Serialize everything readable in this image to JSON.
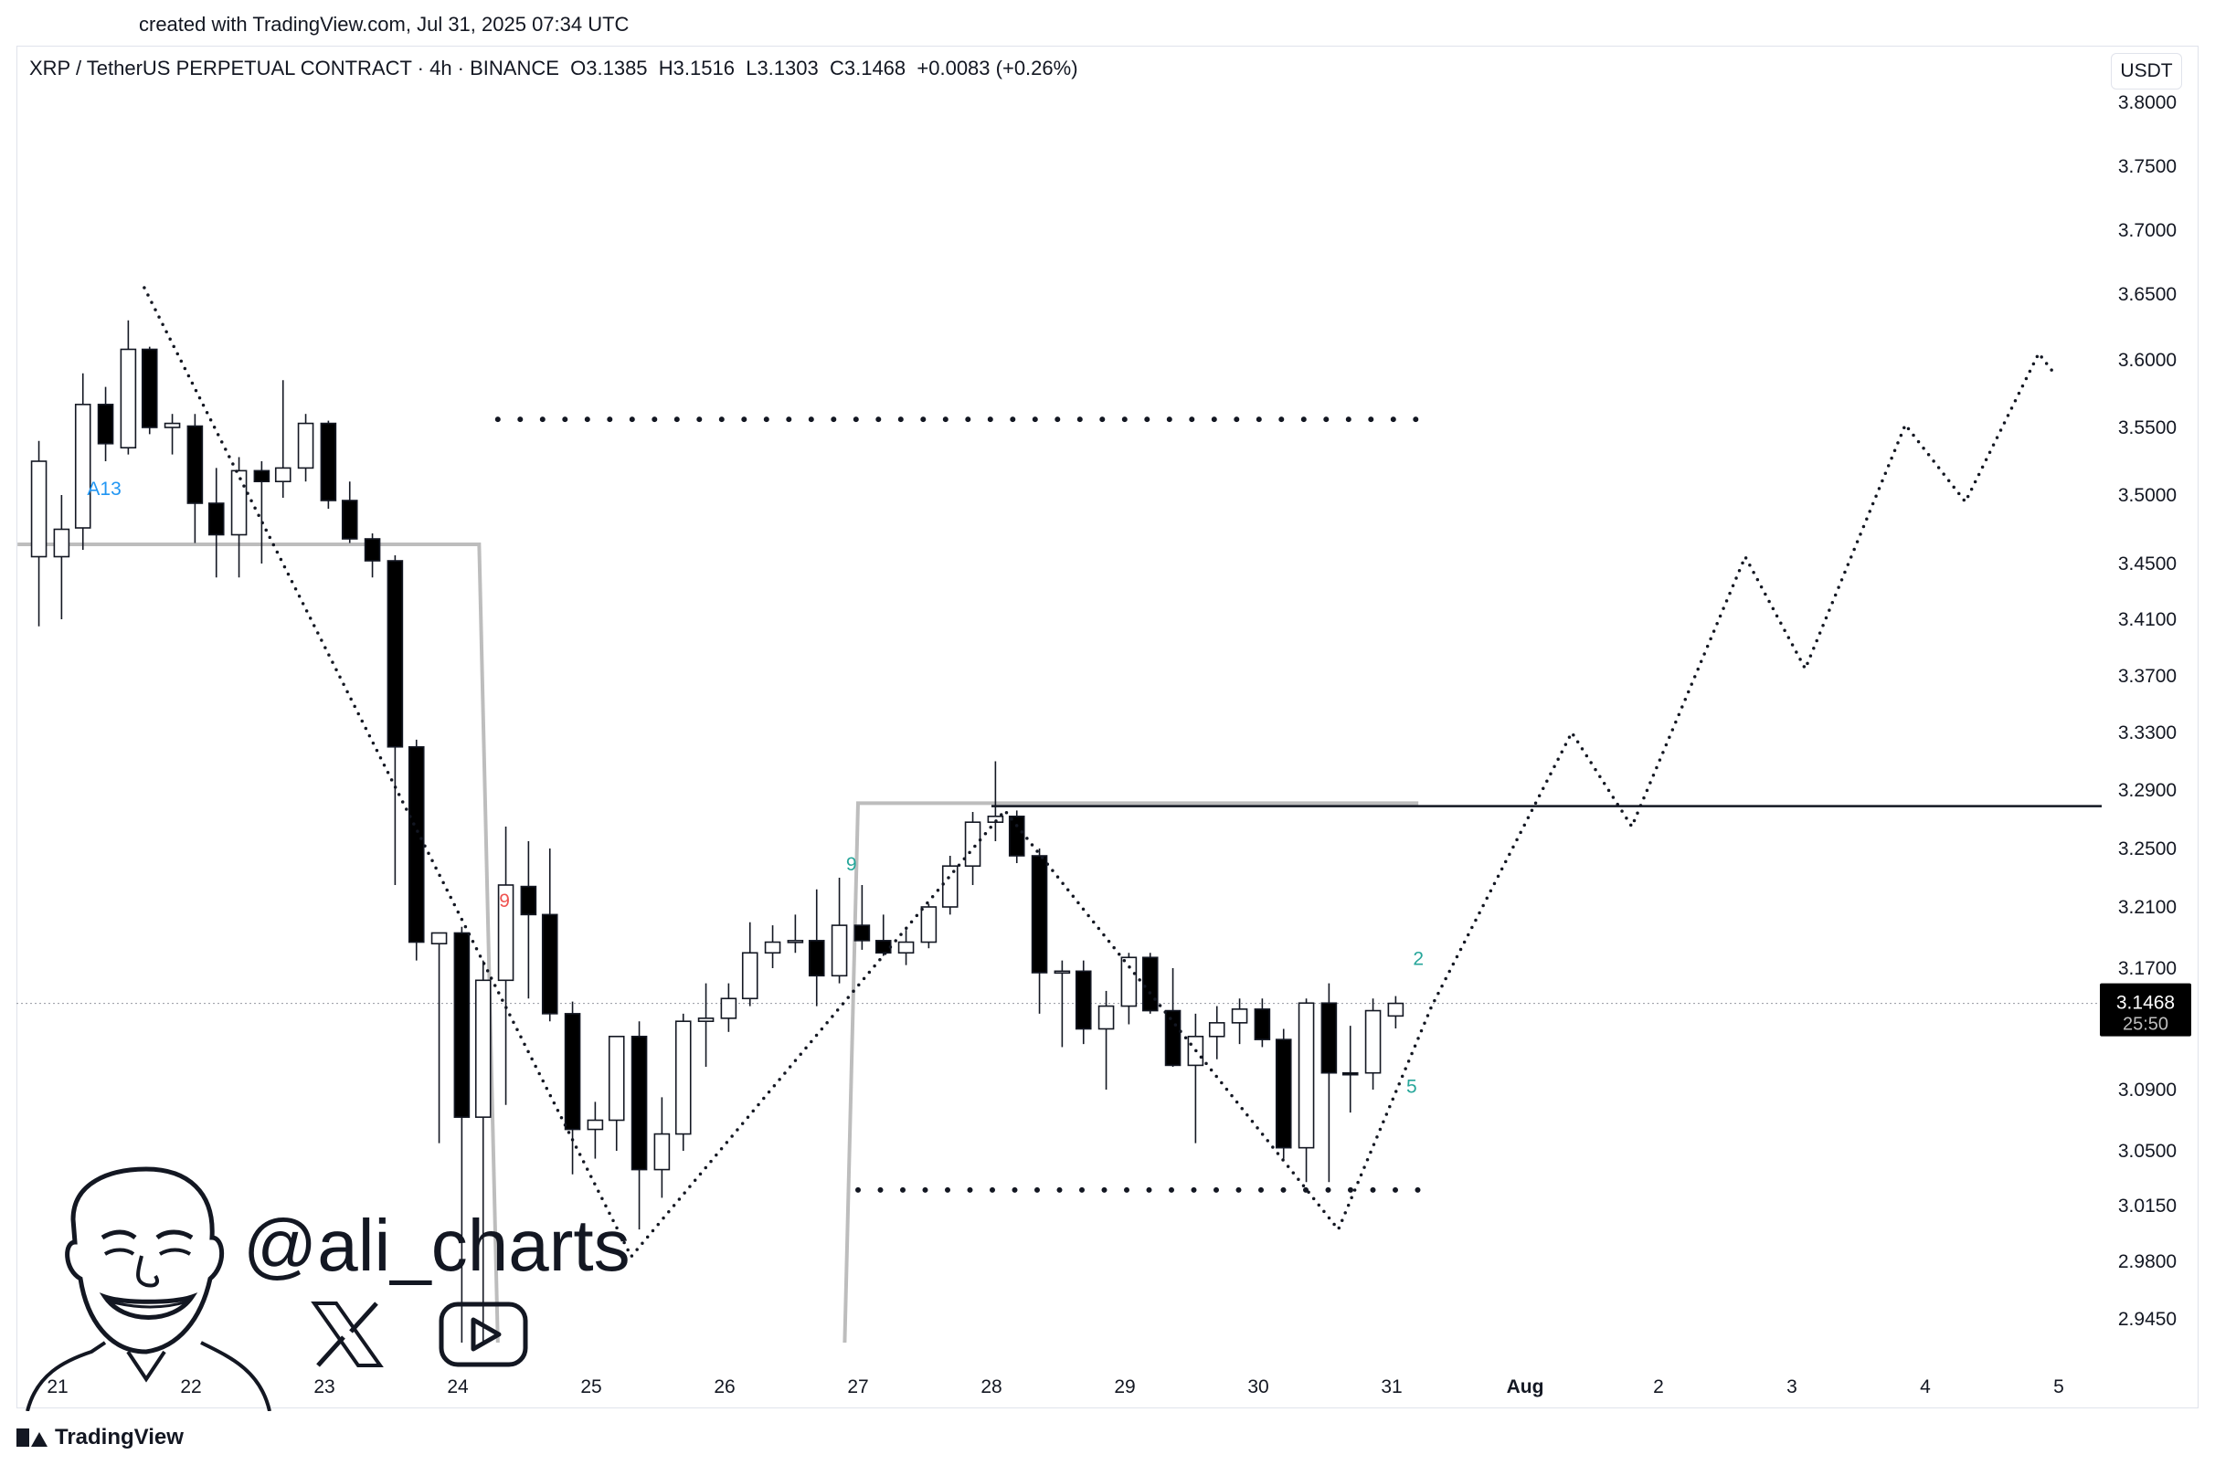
{
  "header": {
    "created_text": "created with TradingView.com, Jul 31, 2025 07:34 UTC"
  },
  "legend": {
    "symbol": "XRP / TetherUS PERPETUAL CONTRACT · 4h · BINANCE",
    "open": "O3.1385",
    "high": "H3.1516",
    "low": "L3.1303",
    "close": "C3.1468",
    "change": "+0.0083 (+0.26%)"
  },
  "unit_button": "USDT",
  "branding": {
    "handle": "@ali_charts",
    "footer_label": "TradingView",
    "x_icon": "x-logo-icon",
    "youtube_icon": "youtube-play-icon"
  },
  "chart_data": {
    "type": "candlestick",
    "interval": "4h",
    "y_axis_ticks": [
      "3.8000",
      "3.7500",
      "3.7000",
      "3.6500",
      "3.6000",
      "3.5500",
      "3.5000",
      "3.4500",
      "3.4100",
      "3.3700",
      "3.3300",
      "3.2900",
      "3.2500",
      "3.2100",
      "3.1700",
      "3.0900",
      "3.0500",
      "3.0150",
      "2.9800",
      "2.9450"
    ],
    "x_axis_ticks": [
      {
        "label": "21",
        "day": 21
      },
      {
        "label": "22",
        "day": 22
      },
      {
        "label": "23",
        "day": 23
      },
      {
        "label": "24",
        "day": 24
      },
      {
        "label": "25",
        "day": 25
      },
      {
        "label": "26",
        "day": 26
      },
      {
        "label": "27",
        "day": 27
      },
      {
        "label": "28",
        "day": 28
      },
      {
        "label": "29",
        "day": 29
      },
      {
        "label": "30",
        "day": 30
      },
      {
        "label": "31",
        "day": 31
      },
      {
        "label": "Aug",
        "day": 32
      },
      {
        "label": "2",
        "day": 33
      },
      {
        "label": "3",
        "day": 34
      },
      {
        "label": "4",
        "day": 35
      },
      {
        "label": "5",
        "day": 36
      }
    ],
    "ylim": [
      2.915,
      3.81
    ],
    "last_price": {
      "value": 3.1468,
      "label": "3.1468",
      "countdown": "25:50"
    },
    "candles": [
      {
        "t": 20.86,
        "o": 3.455,
        "h": 3.54,
        "l": 3.405,
        "c": 3.525
      },
      {
        "t": 21.03,
        "o": 3.455,
        "h": 3.5,
        "l": 3.41,
        "c": 3.475
      },
      {
        "t": 21.19,
        "o": 3.476,
        "h": 3.59,
        "l": 3.46,
        "c": 3.567
      },
      {
        "t": 21.36,
        "o": 3.567,
        "h": 3.58,
        "l": 3.525,
        "c": 3.538
      },
      {
        "t": 21.53,
        "o": 3.535,
        "h": 3.63,
        "l": 3.53,
        "c": 3.608
      },
      {
        "t": 21.69,
        "o": 3.608,
        "h": 3.61,
        "l": 3.545,
        "c": 3.55
      },
      {
        "t": 21.86,
        "o": 3.55,
        "h": 3.56,
        "l": 3.53,
        "c": 3.553
      },
      {
        "t": 22.03,
        "o": 3.551,
        "h": 3.56,
        "l": 3.465,
        "c": 3.494
      },
      {
        "t": 22.19,
        "o": 3.494,
        "h": 3.52,
        "l": 3.44,
        "c": 3.471
      },
      {
        "t": 22.36,
        "o": 3.471,
        "h": 3.528,
        "l": 3.44,
        "c": 3.518
      },
      {
        "t": 22.53,
        "o": 3.518,
        "h": 3.525,
        "l": 3.45,
        "c": 3.51
      },
      {
        "t": 22.69,
        "o": 3.51,
        "h": 3.585,
        "l": 3.498,
        "c": 3.52
      },
      {
        "t": 22.86,
        "o": 3.52,
        "h": 3.56,
        "l": 3.51,
        "c": 3.553
      },
      {
        "t": 23.03,
        "o": 3.553,
        "h": 3.555,
        "l": 3.49,
        "c": 3.496
      },
      {
        "t": 23.19,
        "o": 3.496,
        "h": 3.51,
        "l": 3.465,
        "c": 3.468
      },
      {
        "t": 23.36,
        "o": 3.468,
        "h": 3.472,
        "l": 3.44,
        "c": 3.452
      },
      {
        "t": 23.53,
        "o": 3.452,
        "h": 3.456,
        "l": 3.225,
        "c": 3.32
      },
      {
        "t": 23.69,
        "o": 3.32,
        "h": 3.325,
        "l": 3.175,
        "c": 3.187
      },
      {
        "t": 23.86,
        "o": 3.186,
        "h": 3.19,
        "l": 3.055,
        "c": 3.193
      },
      {
        "t": 24.03,
        "o": 3.193,
        "h": 3.197,
        "l": 2.93,
        "c": 3.072
      },
      {
        "t": 24.19,
        "o": 3.072,
        "h": 3.175,
        "l": 2.93,
        "c": 3.162
      },
      {
        "t": 24.36,
        "o": 3.162,
        "h": 3.265,
        "l": 3.08,
        "c": 3.225
      },
      {
        "t": 24.53,
        "o": 3.224,
        "h": 3.255,
        "l": 3.15,
        "c": 3.205
      },
      {
        "t": 24.69,
        "o": 3.205,
        "h": 3.25,
        "l": 3.135,
        "c": 3.14
      },
      {
        "t": 24.86,
        "o": 3.14,
        "h": 3.148,
        "l": 3.035,
        "c": 3.064
      },
      {
        "t": 25.03,
        "o": 3.064,
        "h": 3.082,
        "l": 3.045,
        "c": 3.07
      },
      {
        "t": 25.19,
        "o": 3.07,
        "h": 3.12,
        "l": 3.05,
        "c": 3.125
      },
      {
        "t": 25.36,
        "o": 3.125,
        "h": 3.135,
        "l": 3.0,
        "c": 3.038
      },
      {
        "t": 25.53,
        "o": 3.038,
        "h": 3.085,
        "l": 3.02,
        "c": 3.061
      },
      {
        "t": 25.69,
        "o": 3.061,
        "h": 3.14,
        "l": 3.05,
        "c": 3.135
      },
      {
        "t": 25.86,
        "o": 3.135,
        "h": 3.16,
        "l": 3.105,
        "c": 3.137
      },
      {
        "t": 26.03,
        "o": 3.137,
        "h": 3.16,
        "l": 3.128,
        "c": 3.15
      },
      {
        "t": 26.19,
        "o": 3.15,
        "h": 3.2,
        "l": 3.145,
        "c": 3.18
      },
      {
        "t": 26.36,
        "o": 3.18,
        "h": 3.198,
        "l": 3.17,
        "c": 3.187
      },
      {
        "t": 26.53,
        "o": 3.187,
        "h": 3.205,
        "l": 3.18,
        "c": 3.188
      },
      {
        "t": 26.69,
        "o": 3.188,
        "h": 3.222,
        "l": 3.145,
        "c": 3.165
      },
      {
        "t": 26.86,
        "o": 3.165,
        "h": 3.23,
        "l": 3.16,
        "c": 3.198
      },
      {
        "t": 27.03,
        "o": 3.198,
        "h": 3.225,
        "l": 3.182,
        "c": 3.188
      },
      {
        "t": 27.19,
        "o": 3.188,
        "h": 3.205,
        "l": 3.178,
        "c": 3.18
      },
      {
        "t": 27.36,
        "o": 3.18,
        "h": 3.195,
        "l": 3.172,
        "c": 3.187
      },
      {
        "t": 27.53,
        "o": 3.187,
        "h": 3.212,
        "l": 3.183,
        "c": 3.21
      },
      {
        "t": 27.69,
        "o": 3.21,
        "h": 3.245,
        "l": 3.205,
        "c": 3.238
      },
      {
        "t": 27.86,
        "o": 3.238,
        "h": 3.275,
        "l": 3.225,
        "c": 3.268
      },
      {
        "t": 28.03,
        "o": 3.268,
        "h": 3.31,
        "l": 3.255,
        "c": 3.272
      },
      {
        "t": 28.19,
        "o": 3.272,
        "h": 3.276,
        "l": 3.24,
        "c": 3.245
      },
      {
        "t": 28.36,
        "o": 3.245,
        "h": 3.25,
        "l": 3.14,
        "c": 3.167
      },
      {
        "t": 28.53,
        "o": 3.167,
        "h": 3.175,
        "l": 3.118,
        "c": 3.168
      },
      {
        "t": 28.69,
        "o": 3.168,
        "h": 3.175,
        "l": 3.12,
        "c": 3.13
      },
      {
        "t": 28.86,
        "o": 3.13,
        "h": 3.155,
        "l": 3.09,
        "c": 3.145
      },
      {
        "t": 29.03,
        "o": 3.145,
        "h": 3.18,
        "l": 3.133,
        "c": 3.177
      },
      {
        "t": 29.19,
        "o": 3.177,
        "h": 3.18,
        "l": 3.14,
        "c": 3.142
      },
      {
        "t": 29.36,
        "o": 3.142,
        "h": 3.17,
        "l": 3.105,
        "c": 3.106
      },
      {
        "t": 29.53,
        "o": 3.106,
        "h": 3.14,
        "l": 3.055,
        "c": 3.125
      },
      {
        "t": 29.69,
        "o": 3.125,
        "h": 3.145,
        "l": 3.11,
        "c": 3.134
      },
      {
        "t": 29.86,
        "o": 3.134,
        "h": 3.15,
        "l": 3.12,
        "c": 3.143
      },
      {
        "t": 30.03,
        "o": 3.143,
        "h": 3.15,
        "l": 3.118,
        "c": 3.123
      },
      {
        "t": 30.19,
        "o": 3.123,
        "h": 3.13,
        "l": 3.045,
        "c": 3.052
      },
      {
        "t": 30.36,
        "o": 3.052,
        "h": 3.15,
        "l": 3.03,
        "c": 3.147
      },
      {
        "t": 30.53,
        "o": 3.147,
        "h": 3.16,
        "l": 3.03,
        "c": 3.101
      },
      {
        "t": 30.69,
        "o": 3.101,
        "h": 3.132,
        "l": 3.075,
        "c": 3.1
      },
      {
        "t": 30.86,
        "o": 3.101,
        "h": 3.15,
        "l": 3.09,
        "c": 3.142
      },
      {
        "t": 31.03,
        "o": 3.1385,
        "h": 3.1516,
        "l": 3.1303,
        "c": 3.1468
      }
    ],
    "horizontal_levels": [
      {
        "name": "upper-dotted-target",
        "price": 3.556,
        "style": "dotted",
        "from": 24.3,
        "to": 31.2
      },
      {
        "name": "lower-dotted-support",
        "price": 3.025,
        "style": "dotted",
        "from": 27.0,
        "to": 31.2
      },
      {
        "name": "breakout-line",
        "price": 3.279,
        "style": "solid",
        "from": 28.0,
        "to": 36.35
      }
    ],
    "zigzag_path": [
      [
        21.65,
        3.655
      ],
      [
        25.3,
        2.983
      ],
      [
        28.1,
        3.276
      ],
      [
        30.6,
        3.0
      ],
      [
        31.3,
        3.145
      ],
      [
        32.35,
        3.33
      ],
      [
        32.8,
        3.265
      ],
      [
        33.65,
        3.455
      ],
      [
        34.1,
        3.375
      ],
      [
        34.85,
        3.552
      ],
      [
        35.3,
        3.495
      ],
      [
        35.85,
        3.605
      ],
      [
        35.95,
        3.592
      ]
    ],
    "td_step_lines": [
      {
        "points": [
          [
            20.7,
            3.464
          ],
          [
            24.16,
            3.464
          ],
          [
            24.3,
            2.93
          ]
        ]
      },
      {
        "points": [
          [
            26.9,
            2.93
          ],
          [
            27.0,
            3.281
          ],
          [
            31.2,
            3.281
          ]
        ]
      }
    ],
    "td_labels": [
      {
        "text": "A13",
        "color": "#2196f3",
        "t": 21.35,
        "price": 3.5
      },
      {
        "text": "9",
        "color": "#ef5350",
        "t": 24.35,
        "price": 3.21
      },
      {
        "text": "9",
        "color": "#26a69a",
        "t": 26.95,
        "price": 3.235
      },
      {
        "text": "2",
        "color": "#26a69a",
        "t": 31.2,
        "price": 3.172
      },
      {
        "text": "5",
        "color": "#26a69a",
        "t": 31.15,
        "price": 3.088
      }
    ]
  }
}
